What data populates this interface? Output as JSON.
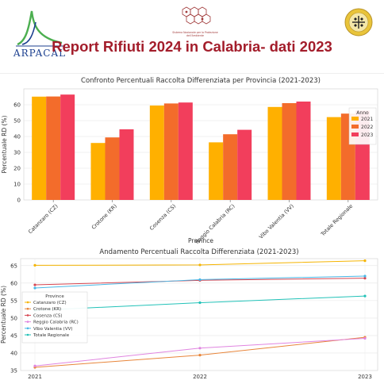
{
  "header": {
    "logo_left_text": "ARPACAL",
    "title": "Report Rifiuti 2024 in Calabria- dati 2023",
    "logo_center_text": "Sistema Nazionale per la Protezione dell'Ambiente"
  },
  "colors": {
    "title": "#a31d2b",
    "arpacal_blue": "#1b3f8f",
    "arpacal_green": "#4caf50"
  },
  "chart_data": [
    {
      "type": "bar",
      "title": "Confronto Percentuali Raccolta Differenziata per Provincia (2021-2023)",
      "xlabel": "Province",
      "ylabel": "Percentuale RD (%)",
      "ylim": [
        0,
        70
      ],
      "yticks": [
        0,
        10,
        20,
        30,
        40,
        50,
        60
      ],
      "grid": true,
      "legend": {
        "title": "Anno",
        "placement": "top-right"
      },
      "categories": [
        "Catanzaro (CZ)",
        "Crotone (KR)",
        "Cosenza (CS)",
        "Reggio Calabria (RC)",
        "Vibo Valentia (VV)",
        "Totale Regionale"
      ],
      "series": [
        {
          "name": "2021",
          "color": "#ffb000",
          "values": [
            65.1,
            35.9,
            59.5,
            36.3,
            58.6,
            52.2
          ]
        },
        {
          "name": "2022",
          "color": "#f36c2b",
          "values": [
            65.2,
            39.4,
            60.8,
            41.4,
            61.0,
            54.4
          ]
        },
        {
          "name": "2023",
          "color": "#f23e5c",
          "values": [
            66.4,
            44.5,
            61.4,
            44.2,
            62.0,
            56.3
          ]
        }
      ]
    },
    {
      "type": "line",
      "title": "Andamento Percentuali Raccolta Differenziata (2021-2023)",
      "xlabel": "",
      "ylabel": "Percentuale RD (%)",
      "ylim": [
        35,
        67
      ],
      "yticks": [
        35,
        40,
        45,
        50,
        55,
        60,
        65
      ],
      "x": [
        "2021",
        "2022",
        "2023"
      ],
      "grid": true,
      "legend": {
        "title": "Province",
        "placement": "center-left"
      },
      "series": [
        {
          "name": "Catanzaro (CZ)",
          "color": "#f5b400",
          "values": [
            65.1,
            65.2,
            66.4
          ]
        },
        {
          "name": "Crotone (KR)",
          "color": "#e8853a",
          "values": [
            35.9,
            39.4,
            44.5
          ]
        },
        {
          "name": "Cosenza (CS)",
          "color": "#d64550",
          "values": [
            59.5,
            60.8,
            61.4
          ]
        },
        {
          "name": "Reggio Calabria (RC)",
          "color": "#e085e0",
          "values": [
            36.3,
            41.4,
            44.2
          ]
        },
        {
          "name": "Vibo Valentia (VV)",
          "color": "#48b7e6",
          "values": [
            58.6,
            61.0,
            62.0
          ]
        },
        {
          "name": "Totale Regionale",
          "color": "#22c2b8",
          "values": [
            52.2,
            54.4,
            56.3
          ]
        }
      ]
    }
  ]
}
